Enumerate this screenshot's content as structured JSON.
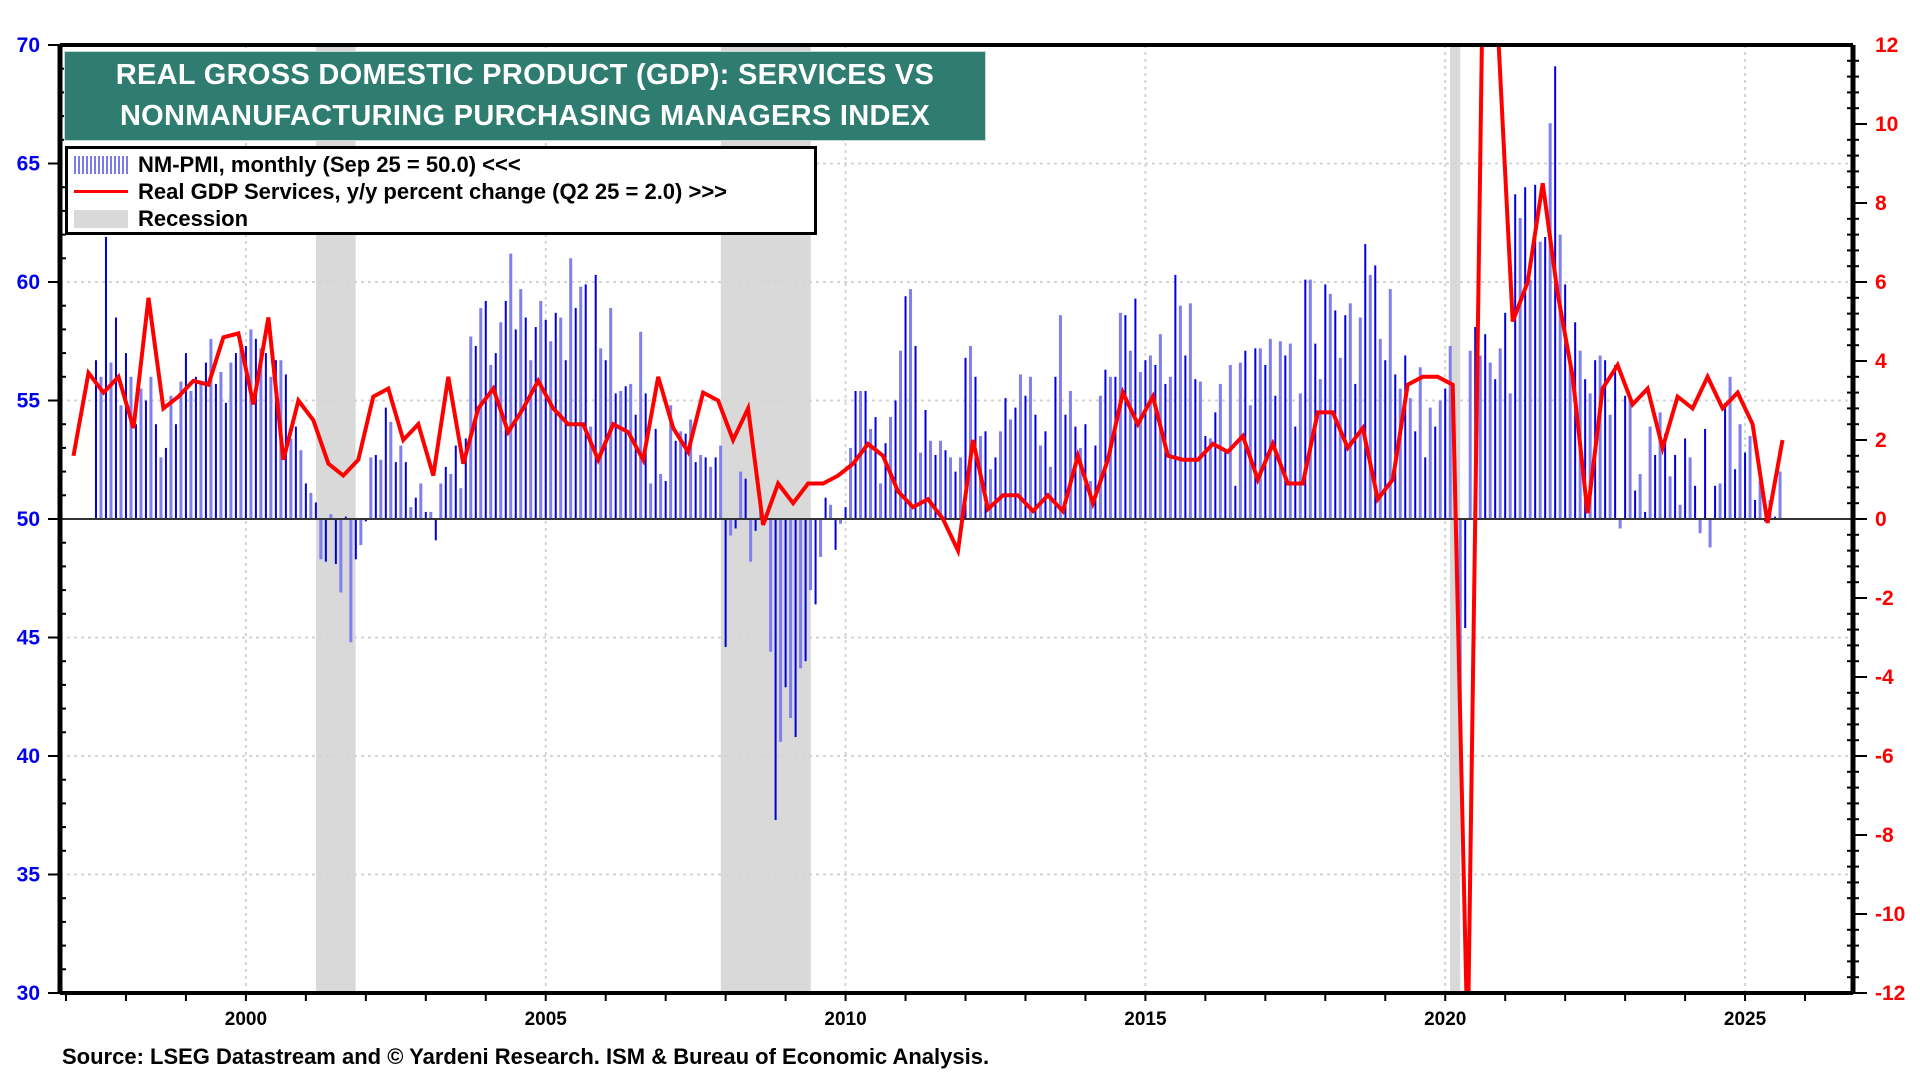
{
  "title": {
    "line1": "REAL GROSS DOMESTIC PRODUCT (GDP): SERVICES VS",
    "line2": "NONMANUFACTURING PURCHASING MANAGERS INDEX"
  },
  "legend": [
    {
      "label": "NM-PMI, monthly (Sep 25 = 50.0) <<<",
      "type": "bars"
    },
    {
      "label": "Real GDP Services, y/y percent change (Q2 25 = 2.0) >>>",
      "type": "line"
    },
    {
      "label": "Recession",
      "type": "shade"
    }
  ],
  "source": "Source: LSEG Datastream and © Yardeni Research. ISM & Bureau of Economic Analysis.",
  "colors": {
    "pmi_dark": "#0000dd",
    "pmi_light": "#7f7fee",
    "gdp": "#ff0000",
    "recession": "#d9d9d9",
    "title_bg": "#2f7d70",
    "left_axis": "#0000ee",
    "right_axis": "#ff0000"
  },
  "chart_data": {
    "type": "bar+line",
    "title": "REAL GROSS DOMESTIC PRODUCT (GDP): SERVICES VS NONMANUFACTURING PURCHASING MANAGERS INDEX",
    "xlabel": "",
    "x_range": [
      1996.9,
      2026.8
    ],
    "x_ticks": [
      2000,
      2005,
      2010,
      2015,
      2020,
      2025
    ],
    "y_left": {
      "label": "NM-PMI",
      "range": [
        30,
        70
      ],
      "ticks": [
        30,
        35,
        40,
        45,
        50,
        55,
        60,
        65,
        70
      ],
      "baseline": 50
    },
    "y_right": {
      "label": "Real GDP Services, y/y %",
      "range": [
        -12,
        12
      ],
      "ticks": [
        -12,
        -10,
        -8,
        -6,
        -4,
        -2,
        0,
        2,
        4,
        6,
        8,
        10,
        12
      ]
    },
    "grid": true,
    "legend_position": "top-left",
    "recessions": [
      [
        2001.17,
        2001.83
      ],
      [
        2007.92,
        2009.42
      ],
      [
        2020.08,
        2020.25
      ]
    ],
    "series": [
      {
        "name": "NM-PMI, monthly",
        "axis": "left",
        "type": "bar",
        "start": "1997-07",
        "frequency": "monthly",
        "values": [
          56.7,
          56.0,
          61.9,
          56.6,
          58.5,
          54.8,
          57.0,
          56.0,
          54.0,
          55.5,
          55.0,
          56.0,
          54.0,
          52.6,
          53.0,
          55.2,
          54.0,
          55.8,
          57.0,
          55.4,
          56.0,
          55.8,
          56.6,
          57.6,
          55.7,
          56.2,
          54.9,
          56.6,
          57.0,
          57.5,
          57.3,
          58.0,
          57.6,
          57.2,
          57.0,
          56.0,
          56.7,
          56.7,
          56.1,
          53.4,
          53.9,
          52.9,
          51.5,
          51.1,
          50.7,
          48.3,
          48.2,
          50.2,
          48.1,
          46.9,
          50.1,
          44.8,
          48.3,
          48.9,
          49.9,
          52.6,
          52.7,
          52.5,
          54.7,
          54.1,
          52.4,
          53.1,
          52.4,
          50.5,
          50.9,
          51.5,
          50.3,
          50.3,
          49.1,
          51.5,
          52.2,
          51.9,
          53.1,
          51.3,
          53.4,
          57.7,
          57.3,
          58.9,
          59.2,
          56.5,
          57.0,
          58.3,
          59.2,
          61.2,
          58.0,
          59.7,
          58.5,
          56.7,
          58.1,
          59.2,
          58.4,
          57.5,
          58.7,
          58.5,
          56.7,
          61.0,
          58.9,
          59.8,
          59.9,
          53.9,
          60.3,
          57.2,
          56.7,
          58.9,
          55.3,
          55.4,
          55.6,
          55.7,
          54.4,
          57.9,
          55.3,
          51.5,
          53.8,
          51.9,
          51.6,
          54.8,
          53.3,
          53.7,
          53.6,
          54.2,
          52.4,
          52.7,
          52.6,
          52.2,
          52.6,
          53.1,
          44.6,
          49.3,
          49.6,
          52.0,
          51.7,
          48.2,
          49.5,
          50.6,
          50.2,
          44.4,
          37.3,
          40.6,
          42.9,
          41.6,
          40.8,
          43.7,
          44.0,
          47.0,
          46.4,
          48.4,
          50.9,
          50.6,
          48.7,
          49.8,
          50.5,
          53.0,
          55.4,
          55.4,
          55.4,
          53.8,
          54.3,
          51.5,
          53.2,
          54.3,
          55.0,
          57.1,
          59.4,
          59.7,
          57.3,
          52.8,
          54.6,
          53.3,
          52.7,
          53.3,
          52.9,
          52.6,
          52.0,
          52.6,
          56.8,
          57.3,
          56.0,
          53.5,
          53.7,
          52.1,
          52.6,
          53.7,
          55.1,
          54.2,
          54.7,
          56.1,
          55.2,
          56.0,
          54.4,
          53.1,
          53.7,
          52.2,
          56.0,
          58.6,
          54.4,
          55.4,
          53.9,
          53.0,
          54.0,
          51.6,
          53.1,
          55.2,
          56.3,
          56.0,
          56.0,
          58.7,
          58.6,
          57.1,
          59.3,
          56.2,
          56.7,
          56.9,
          56.5,
          57.8,
          55.7,
          56.0,
          60.3,
          59.0,
          56.9,
          59.1,
          55.9,
          55.8,
          53.5,
          53.4,
          54.5,
          55.7,
          52.9,
          56.5,
          51.4,
          56.6,
          57.1,
          54.8,
          57.2,
          57.2,
          56.5,
          57.6,
          55.2,
          57.5,
          56.9,
          57.4,
          53.9,
          55.3,
          60.1,
          60.1,
          57.4,
          55.9,
          59.9,
          59.5,
          58.8,
          56.8,
          58.6,
          59.1,
          55.7,
          58.5,
          61.6,
          60.3,
          60.7,
          57.6,
          56.7,
          59.7,
          56.1,
          55.5,
          56.9,
          55.1,
          53.7,
          56.4,
          52.6,
          54.7,
          53.9,
          55.0,
          55.5,
          57.3,
          52.5,
          41.8,
          45.4,
          57.1,
          58.1,
          56.9,
          57.8,
          56.6,
          55.9,
          57.2,
          58.7,
          55.3,
          63.7,
          62.7,
          64.0,
          60.1,
          64.1,
          61.7,
          61.9,
          66.7,
          69.1,
          62.0,
          59.9,
          56.5,
          58.3,
          57.1,
          55.9,
          55.3,
          56.7,
          56.9,
          56.7,
          54.4,
          56.5,
          49.6,
          55.2,
          55.1,
          51.2,
          51.9,
          50.3,
          53.9,
          52.7,
          54.5,
          53.6,
          51.8,
          52.7,
          50.6,
          53.4,
          52.6,
          51.4,
          49.4,
          53.8,
          48.8,
          51.4,
          51.5,
          54.9,
          56.0,
          52.1,
          54.0,
          52.8,
          53.5,
          50.8,
          51.6,
          49.9,
          50.8,
          50.1,
          52.0,
          50.0
        ]
      },
      {
        "name": "Real GDP Services, y/y percent change",
        "axis": "right",
        "type": "line",
        "start": "1997-Q1",
        "frequency": "quarterly",
        "values": [
          1.6,
          3.7,
          3.2,
          3.6,
          2.3,
          5.6,
          2.8,
          3.1,
          3.5,
          3.4,
          4.6,
          4.7,
          2.9,
          5.1,
          1.5,
          3.0,
          2.5,
          1.4,
          1.1,
          1.5,
          3.1,
          3.3,
          2.0,
          2.4,
          1.1,
          3.6,
          1.4,
          2.8,
          3.3,
          2.2,
          2.8,
          3.5,
          2.8,
          2.4,
          2.4,
          1.5,
          2.4,
          2.2,
          1.5,
          3.6,
          2.3,
          1.7,
          3.2,
          3.0,
          2.0,
          2.8,
          -0.15,
          0.9,
          0.4,
          0.9,
          0.9,
          1.1,
          1.4,
          1.9,
          1.6,
          0.7,
          0.3,
          0.5,
          0.0,
          -0.8,
          2.0,
          0.25,
          0.6,
          0.6,
          0.2,
          0.6,
          0.2,
          1.6,
          0.4,
          1.5,
          3.2,
          2.4,
          3.1,
          1.6,
          1.5,
          1.5,
          1.9,
          1.7,
          2.1,
          1.0,
          1.9,
          0.9,
          0.9,
          2.7,
          2.7,
          1.8,
          2.3,
          0.5,
          1.0,
          3.4,
          3.6,
          3.6,
          3.4,
          -13.5,
          13.5,
          12.5,
          5.0,
          6.0,
          8.5,
          5.7,
          3.6,
          0.15,
          3.3,
          3.9,
          2.9,
          3.3,
          1.8,
          3.1,
          2.8,
          3.6,
          2.8,
          3.2,
          2.4,
          -0.1,
          2.0
        ]
      }
    ]
  }
}
